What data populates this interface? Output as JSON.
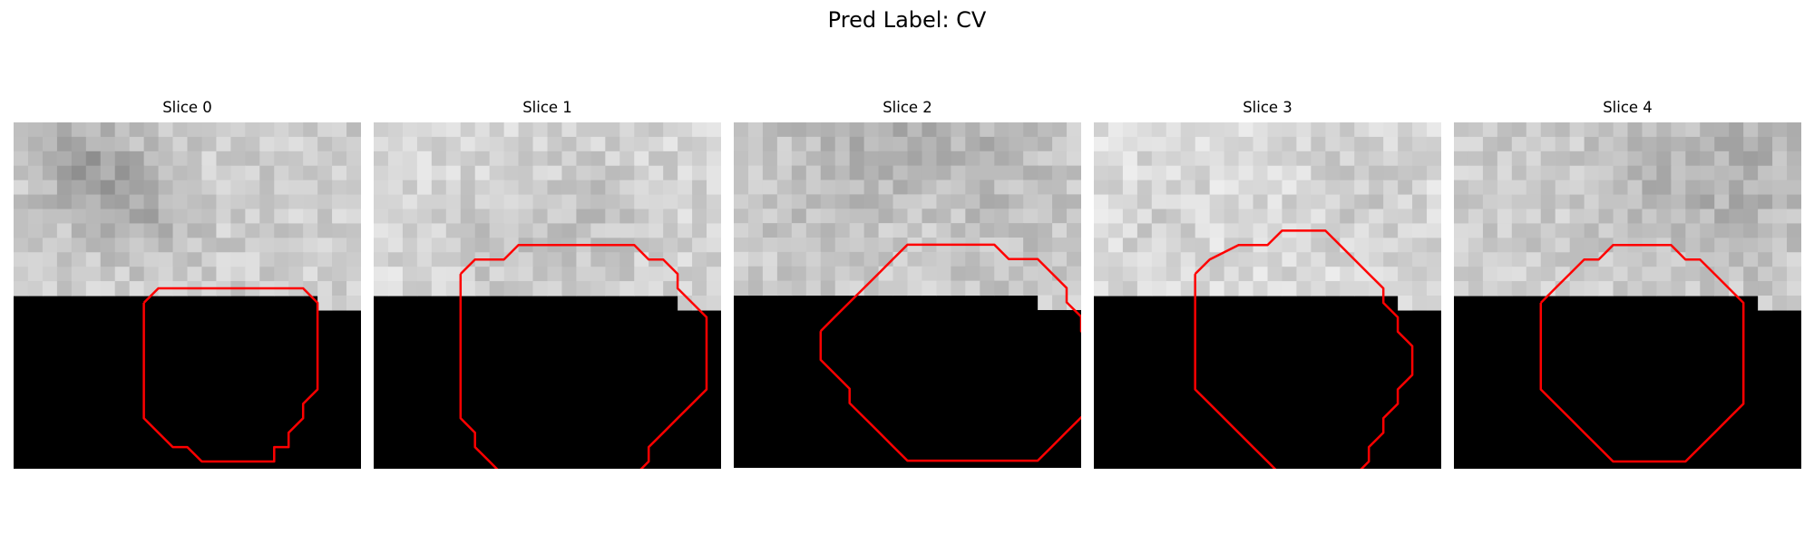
{
  "figure": {
    "suptitle": "Pred Label: CV",
    "contour_color": "#ff0000",
    "mask_color": "#000000",
    "colormap": "gray"
  },
  "panels": [
    {
      "title": "Slice 0",
      "seed": 11,
      "base": 205,
      "dark_blobs": [
        [
          6,
          4,
          4,
          30
        ],
        [
          4,
          2,
          3,
          25
        ],
        [
          9,
          6,
          3,
          20
        ]
      ],
      "contour": [
        [
          9,
          5
        ],
        [
          10,
          4
        ],
        [
          15,
          4
        ],
        [
          16,
          4
        ],
        [
          17,
          4
        ],
        [
          18,
          4
        ],
        [
          19,
          4
        ],
        [
          20,
          4
        ],
        [
          21,
          5
        ],
        [
          21,
          8
        ],
        [
          21,
          9
        ],
        [
          21,
          11
        ],
        [
          20,
          12
        ],
        [
          20,
          13
        ],
        [
          19,
          14
        ],
        [
          19,
          15
        ],
        [
          18,
          15
        ],
        [
          18,
          16
        ],
        [
          17,
          16
        ],
        [
          13,
          16
        ],
        [
          12,
          15
        ],
        [
          11,
          15
        ],
        [
          10,
          14
        ],
        [
          9,
          13
        ],
        [
          9,
          12
        ],
        [
          9,
          10
        ],
        [
          9,
          5
        ]
      ]
    },
    {
      "title": "Slice 1",
      "seed": 23,
      "base": 215,
      "dark_blobs": [
        [
          15,
          6,
          5,
          20
        ],
        [
          8,
          8,
          4,
          15
        ]
      ],
      "contour": [
        [
          6,
          3
        ],
        [
          7,
          2
        ],
        [
          9,
          2
        ],
        [
          10,
          1
        ],
        [
          18,
          1
        ],
        [
          19,
          2
        ],
        [
          20,
          2
        ],
        [
          21,
          3
        ],
        [
          21,
          4
        ],
        [
          22,
          5
        ],
        [
          23,
          6
        ],
        [
          23,
          8
        ],
        [
          23,
          9
        ],
        [
          23,
          10
        ],
        [
          23,
          11
        ],
        [
          22,
          12
        ],
        [
          21,
          13
        ],
        [
          20,
          14
        ],
        [
          19,
          15
        ],
        [
          19,
          16
        ],
        [
          18,
          17
        ],
        [
          17,
          18
        ],
        [
          16,
          19
        ],
        [
          11,
          19
        ],
        [
          10,
          18
        ],
        [
          9,
          17
        ],
        [
          8,
          16
        ],
        [
          7,
          15
        ],
        [
          7,
          14
        ],
        [
          6,
          13
        ],
        [
          6,
          10
        ],
        [
          6,
          3
        ]
      ]
    },
    {
      "title": "Slice 2",
      "seed": 37,
      "base": 210,
      "dark_blobs": [
        [
          12,
          3,
          10,
          40
        ],
        [
          12,
          7,
          5,
          -25
        ]
      ],
      "contour": [
        [
          6,
          7
        ],
        [
          7,
          6
        ],
        [
          8,
          5
        ],
        [
          9,
          4
        ],
        [
          10,
          3
        ],
        [
          11,
          2
        ],
        [
          12,
          1
        ],
        [
          18,
          1
        ],
        [
          19,
          2
        ],
        [
          21,
          2
        ],
        [
          22,
          3
        ],
        [
          23,
          4
        ],
        [
          23,
          5
        ],
        [
          24,
          6
        ],
        [
          24,
          7
        ],
        [
          25,
          8
        ],
        [
          25,
          10
        ],
        [
          25,
          12
        ],
        [
          24,
          13
        ],
        [
          23,
          14
        ],
        [
          22,
          15
        ],
        [
          21,
          16
        ],
        [
          12,
          16
        ],
        [
          11,
          15
        ],
        [
          10,
          14
        ],
        [
          9,
          13
        ],
        [
          8,
          12
        ],
        [
          8,
          11
        ],
        [
          7,
          10
        ],
        [
          6,
          9
        ],
        [
          6,
          7
        ]
      ]
    },
    {
      "title": "Slice 3",
      "seed": 51,
      "base": 218,
      "dark_blobs": [
        [
          18,
          4,
          4,
          15
        ],
        [
          4,
          7,
          3,
          10
        ]
      ],
      "contour": [
        [
          7,
          3
        ],
        [
          8,
          2
        ],
        [
          10,
          1
        ],
        [
          12,
          1
        ],
        [
          13,
          0
        ],
        [
          16,
          0
        ],
        [
          17,
          1
        ],
        [
          18,
          2
        ],
        [
          19,
          3
        ],
        [
          20,
          4
        ],
        [
          20,
          5
        ],
        [
          21,
          6
        ],
        [
          21,
          7
        ],
        [
          22,
          8
        ],
        [
          22,
          9
        ],
        [
          22,
          10
        ],
        [
          21,
          11
        ],
        [
          21,
          12
        ],
        [
          20,
          13
        ],
        [
          20,
          14
        ],
        [
          19,
          15
        ],
        [
          19,
          16
        ],
        [
          18,
          17
        ],
        [
          13,
          17
        ],
        [
          12,
          16
        ],
        [
          11,
          15
        ],
        [
          10,
          14
        ],
        [
          9,
          13
        ],
        [
          8,
          12
        ],
        [
          7,
          11
        ],
        [
          7,
          10
        ],
        [
          7,
          3
        ]
      ]
    },
    {
      "title": "Slice 4",
      "seed": 67,
      "base": 205,
      "dark_blobs": [
        [
          19,
          3,
          6,
          30
        ],
        [
          12,
          5,
          4,
          15
        ]
      ],
      "contour": [
        [
          6,
          5
        ],
        [
          7,
          4
        ],
        [
          8,
          3
        ],
        [
          9,
          2
        ],
        [
          10,
          2
        ],
        [
          11,
          1
        ],
        [
          15,
          1
        ],
        [
          16,
          2
        ],
        [
          17,
          2
        ],
        [
          18,
          3
        ],
        [
          19,
          4
        ],
        [
          20,
          5
        ],
        [
          20,
          9
        ],
        [
          20,
          12
        ],
        [
          19,
          13
        ],
        [
          18,
          14
        ],
        [
          17,
          15
        ],
        [
          16,
          16
        ],
        [
          15,
          16
        ],
        [
          11,
          16
        ],
        [
          10,
          15
        ],
        [
          9,
          14
        ],
        [
          8,
          13
        ],
        [
          7,
          12
        ],
        [
          6,
          11
        ],
        [
          6,
          5
        ]
      ]
    }
  ]
}
